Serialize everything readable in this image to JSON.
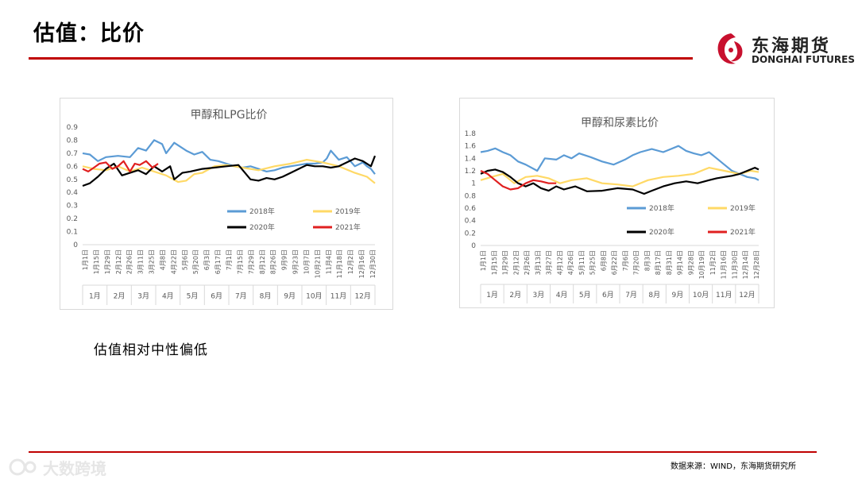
{
  "page": {
    "title": "估值：比价",
    "note": "估值相对中性偏低",
    "source": "数据来源：WIND，东海期货研究所"
  },
  "logo": {
    "cn": "东海期货",
    "en": "DONGHAI FUTURES"
  },
  "watermark": {
    "text": "大数跨境"
  },
  "colors": {
    "accent": "#c00000",
    "s2018": "#5b9bd5",
    "s2019": "#ffd966",
    "s2020": "#000000",
    "s2021": "#e02020"
  },
  "chart_data": [
    {
      "type": "line",
      "title": "甲醇和LPG比价",
      "ylim": [
        0,
        0.9
      ],
      "yticks": [
        "0",
        "0.1",
        "0.2",
        "0.3",
        "0.4",
        "0.5",
        "0.6",
        "0.7",
        "0.8",
        "0.9"
      ],
      "date_ticks": [
        "1月1日",
        "1月15日",
        "1月29日",
        "2月12日",
        "2月26日",
        "3月11日",
        "3月25日",
        "4月8日",
        "4月22日",
        "5月6日",
        "5月20日",
        "6月3日",
        "6月17日",
        "7月1日",
        "7月15日",
        "7月29日",
        "8月12日",
        "8月26日",
        "9月9日",
        "9月23日",
        "10月7日",
        "10月21日",
        "11月4日",
        "11月18日",
        "12月2日",
        "12月16日",
        "12月30日"
      ],
      "months": [
        "1月",
        "2月",
        "3月",
        "4月",
        "5月",
        "6月",
        "7月",
        "8月",
        "9月",
        "10月",
        "11月",
        "12月"
      ],
      "legend": [
        "2018年",
        "2019年",
        "2020年",
        "2021年"
      ],
      "series": [
        {
          "name": "2018年",
          "x": [
            1,
            10,
            20,
            30,
            45,
            60,
            70,
            80,
            90,
            100,
            105,
            115,
            130,
            140,
            150,
            160,
            170,
            180,
            190,
            200,
            210,
            220,
            230,
            240,
            250,
            260,
            270,
            280,
            290,
            300,
            305,
            310,
            320,
            330,
            340,
            350,
            355,
            360,
            365
          ],
          "y": [
            0.7,
            0.69,
            0.64,
            0.67,
            0.68,
            0.67,
            0.74,
            0.72,
            0.8,
            0.77,
            0.7,
            0.78,
            0.72,
            0.69,
            0.71,
            0.65,
            0.64,
            0.62,
            0.6,
            0.59,
            0.6,
            0.58,
            0.56,
            0.57,
            0.59,
            0.6,
            0.61,
            0.62,
            0.62,
            0.63,
            0.66,
            0.72,
            0.65,
            0.67,
            0.6,
            0.63,
            0.6,
            0.58,
            0.54
          ]
        },
        {
          "name": "2019年",
          "x": [
            1,
            15,
            30,
            45,
            60,
            75,
            90,
            105,
            120,
            130,
            140,
            150,
            165,
            180,
            200,
            220,
            240,
            260,
            280,
            300,
            320,
            340,
            355,
            365
          ],
          "y": [
            0.6,
            0.58,
            0.57,
            0.6,
            0.56,
            0.59,
            0.56,
            0.53,
            0.48,
            0.49,
            0.54,
            0.55,
            0.6,
            0.61,
            0.59,
            0.57,
            0.6,
            0.62,
            0.65,
            0.63,
            0.6,
            0.55,
            0.52,
            0.47
          ]
        },
        {
          "name": "2020年",
          "x": [
            1,
            10,
            20,
            30,
            40,
            50,
            60,
            70,
            80,
            90,
            100,
            110,
            115,
            125,
            135,
            150,
            165,
            180,
            195,
            210,
            220,
            230,
            240,
            250,
            260,
            270,
            280,
            290,
            300,
            310,
            320,
            330,
            340,
            350,
            360,
            365
          ],
          "y": [
            0.45,
            0.47,
            0.52,
            0.58,
            0.62,
            0.53,
            0.55,
            0.57,
            0.54,
            0.6,
            0.56,
            0.6,
            0.5,
            0.55,
            0.56,
            0.58,
            0.59,
            0.6,
            0.61,
            0.5,
            0.49,
            0.51,
            0.5,
            0.52,
            0.55,
            0.58,
            0.61,
            0.6,
            0.6,
            0.59,
            0.6,
            0.63,
            0.66,
            0.64,
            0.6,
            0.68
          ]
        },
        {
          "name": "2021年",
          "x": [
            1,
            8,
            15,
            22,
            30,
            38,
            45,
            52,
            60,
            66,
            72,
            80,
            88,
            95
          ],
          "y": [
            0.58,
            0.56,
            0.59,
            0.62,
            0.63,
            0.58,
            0.6,
            0.64,
            0.56,
            0.62,
            0.61,
            0.64,
            0.59,
            0.62
          ]
        }
      ]
    },
    {
      "type": "line",
      "title": "甲醇和尿素比价",
      "ylim": [
        0,
        1.8
      ],
      "yticks": [
        "0",
        "0.2",
        "0.4",
        "0.6",
        "0.8",
        "1",
        "1.2",
        "1.4",
        "1.6",
        "1.8"
      ],
      "date_ticks": [
        "1月1日",
        "1月15日",
        "1月29日",
        "2月12日",
        "2月26日",
        "3月13日",
        "3月27日",
        "4月12日",
        "4月26日",
        "5月11日",
        "5月25日",
        "6月8日",
        "6月22日",
        "7月6日",
        "7月20日",
        "8月3日",
        "8月17日",
        "8月31日",
        "9月14日",
        "9月28日",
        "10月19日",
        "11月2日",
        "11月16日",
        "11月30日",
        "12月14日",
        "12月28日"
      ],
      "months": [
        "1月",
        "2月",
        "3月",
        "4月",
        "5月",
        "6月",
        "7月",
        "8月",
        "9月",
        "10月",
        "11月",
        "12月"
      ],
      "legend": [
        "2018年",
        "2019年",
        "2020年",
        "2021年"
      ],
      "series": [
        {
          "name": "2018年",
          "x": [
            1,
            10,
            20,
            30,
            40,
            50,
            60,
            75,
            85,
            100,
            110,
            120,
            130,
            145,
            160,
            175,
            190,
            200,
            210,
            225,
            240,
            250,
            260,
            270,
            280,
            290,
            300,
            310,
            320,
            330,
            340,
            350,
            360,
            365
          ],
          "y": [
            1.5,
            1.52,
            1.56,
            1.5,
            1.45,
            1.35,
            1.3,
            1.2,
            1.4,
            1.38,
            1.45,
            1.4,
            1.48,
            1.42,
            1.35,
            1.3,
            1.38,
            1.45,
            1.5,
            1.55,
            1.5,
            1.55,
            1.6,
            1.52,
            1.48,
            1.45,
            1.5,
            1.4,
            1.3,
            1.2,
            1.15,
            1.1,
            1.08,
            1.05
          ]
        },
        {
          "name": "2019年",
          "x": [
            1,
            15,
            30,
            45,
            60,
            75,
            90,
            105,
            120,
            140,
            160,
            180,
            200,
            220,
            240,
            260,
            280,
            300,
            320,
            340,
            355,
            365
          ],
          "y": [
            1.05,
            1.1,
            1.15,
            1.0,
            1.1,
            1.12,
            1.08,
            1.0,
            1.05,
            1.08,
            1.0,
            0.98,
            0.95,
            1.05,
            1.1,
            1.12,
            1.15,
            1.25,
            1.2,
            1.15,
            1.2,
            1.18
          ]
        },
        {
          "name": "2020年",
          "x": [
            1,
            10,
            20,
            30,
            40,
            50,
            60,
            70,
            80,
            90,
            100,
            110,
            125,
            140,
            160,
            180,
            200,
            215,
            225,
            240,
            255,
            270,
            285,
            300,
            310,
            320,
            330,
            340,
            350,
            360,
            365
          ],
          "y": [
            1.15,
            1.2,
            1.22,
            1.18,
            1.1,
            1.0,
            0.95,
            1.0,
            0.92,
            0.88,
            0.95,
            0.9,
            0.95,
            0.87,
            0.88,
            0.92,
            0.9,
            0.83,
            0.88,
            0.95,
            1.0,
            1.03,
            1.0,
            1.05,
            1.08,
            1.1,
            1.12,
            1.15,
            1.2,
            1.25,
            1.22
          ]
        },
        {
          "name": "2021年",
          "x": [
            1,
            10,
            20,
            30,
            40,
            50,
            60,
            70,
            80,
            90,
            100
          ],
          "y": [
            1.2,
            1.15,
            1.05,
            0.95,
            0.9,
            0.92,
            1.0,
            1.05,
            1.03,
            1.0,
            1.0
          ]
        }
      ]
    }
  ]
}
